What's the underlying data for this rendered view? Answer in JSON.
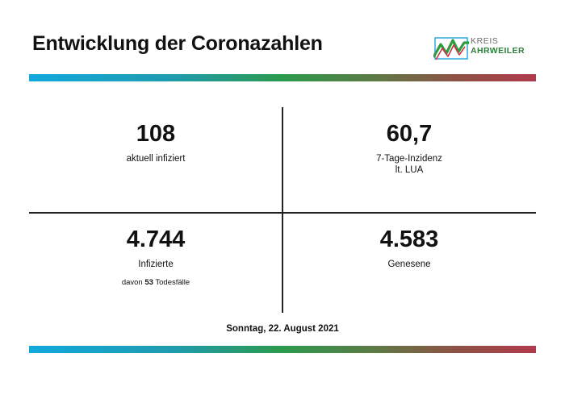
{
  "header": {
    "title": "Entwicklung der Coronazahlen",
    "logo": {
      "line1": "KREIS",
      "line2": "AHRWEILER",
      "icon": "ahrweiler-logo-icon",
      "colors": {
        "green": "#2e9b3d",
        "red": "#c8374a",
        "blue": "#1fa3d8"
      }
    }
  },
  "stats": {
    "infected_current": {
      "value": "108",
      "label": "aktuell infiziert"
    },
    "incidence": {
      "value": "60,7",
      "label_line1": "7-Tage-Inzidenz",
      "label_line2": "lt. LUA"
    },
    "infected_total": {
      "value": "4.744",
      "label": "Infizierte",
      "sub_prefix": "davon ",
      "sub_value": "53",
      "sub_suffix": " Todesfälle"
    },
    "recovered": {
      "value": "4.583",
      "label": "Genesene"
    }
  },
  "footer": {
    "date": "Sonntag, 22. August 2021"
  },
  "colors": {
    "bar_start": "#12a8dc",
    "bar_mid": "#2b9a4c",
    "bar_end": "#b03a4b"
  }
}
